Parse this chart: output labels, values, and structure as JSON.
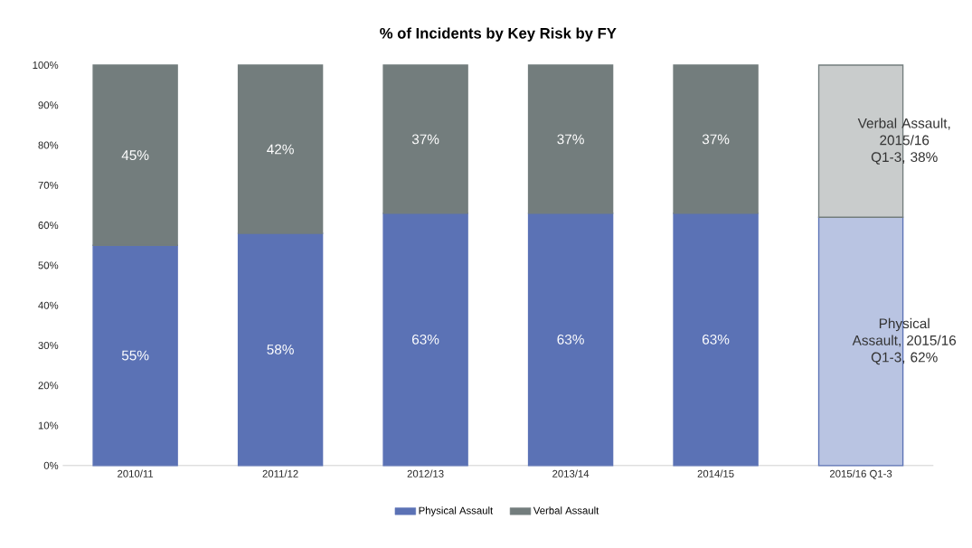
{
  "chart_data": {
    "type": "bar",
    "stacked": true,
    "title": "% of Incidents by Key Risk by FY",
    "categories": [
      "2010/11",
      "2011/12",
      "2012/13",
      "2013/14",
      "2014/15",
      "2015/16 Q1-3"
    ],
    "series": [
      {
        "name": "Physical Assault",
        "color": "#5b72b5",
        "colors": [
          "#5b72b5",
          "#5b72b5",
          "#5b72b5",
          "#5b72b5",
          "#5b72b5",
          "#b9c4e2"
        ],
        "values": [
          55,
          58,
          63,
          63,
          63,
          62
        ],
        "value_labels": [
          "55%",
          "58%",
          "63%",
          "63%",
          "63%",
          "Physical Assault, 2015/16 Q1-3, 62%"
        ]
      },
      {
        "name": "Verbal Assault",
        "color": "#737d7d",
        "colors": [
          "#737d7d",
          "#737d7d",
          "#737d7d",
          "#737d7d",
          "#737d7d",
          "#c9cccc"
        ],
        "values": [
          45,
          42,
          37,
          37,
          37,
          38
        ],
        "value_labels": [
          "45%",
          "42%",
          "37%",
          "37%",
          "37%",
          "Verbal Assault, 2015/16 Q1-3, 38%"
        ]
      }
    ],
    "ylim": [
      0,
      100
    ],
    "yticks": [
      {
        "value": 0,
        "label": "0%"
      },
      {
        "value": 10,
        "label": "10%"
      },
      {
        "value": 20,
        "label": "20%"
      },
      {
        "value": 30,
        "label": "30%"
      },
      {
        "value": 40,
        "label": "40%"
      },
      {
        "value": 50,
        "label": "50%"
      },
      {
        "value": 60,
        "label": "60%"
      },
      {
        "value": 70,
        "label": "70%"
      },
      {
        "value": 80,
        "label": "80%"
      },
      {
        "value": 90,
        "label": "90%"
      },
      {
        "value": 100,
        "label": "100%"
      }
    ],
    "legend": "bottom"
  }
}
